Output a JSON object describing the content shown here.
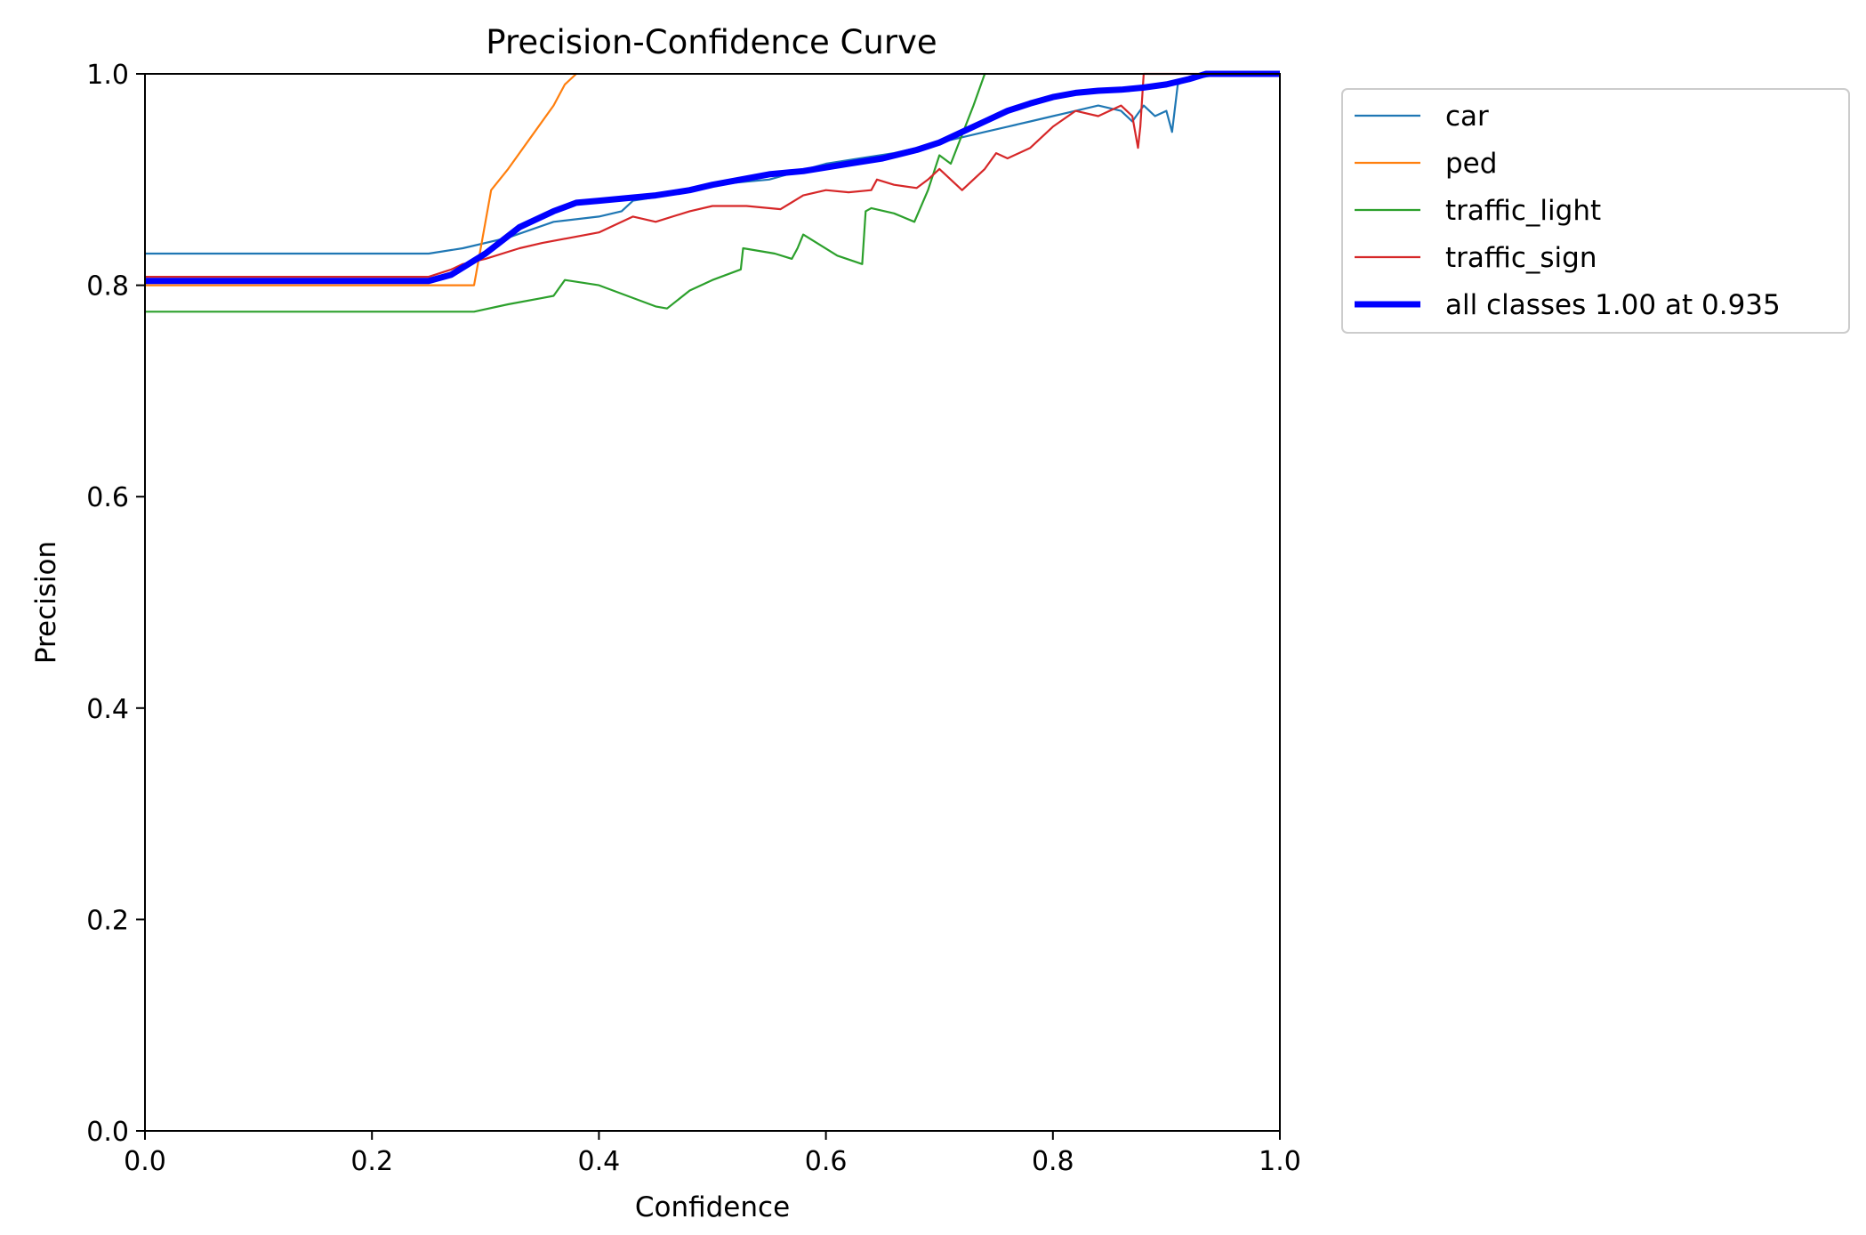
{
  "chart_data": {
    "type": "line",
    "title": "Precision-Confidence Curve",
    "xlabel": "Confidence",
    "ylabel": "Precision",
    "xlim": [
      0,
      1
    ],
    "ylim": [
      0,
      1
    ],
    "xticks": [
      "0.0",
      "0.2",
      "0.4",
      "0.6",
      "0.8",
      "1.0"
    ],
    "yticks": [
      "0.0",
      "0.2",
      "0.4",
      "0.6",
      "0.8",
      "1.0"
    ],
    "grid": false,
    "legend_position": "outside-right",
    "series": [
      {
        "name": "car",
        "color": "#1f77b4",
        "width": "thin",
        "x": [
          0.0,
          0.25,
          0.28,
          0.32,
          0.36,
          0.4,
          0.42,
          0.43,
          0.46,
          0.5,
          0.55,
          0.6,
          0.63,
          0.66,
          0.7,
          0.72,
          0.74,
          0.76,
          0.78,
          0.8,
          0.82,
          0.84,
          0.86,
          0.87,
          0.88,
          0.89,
          0.9,
          0.905,
          0.91,
          0.92,
          0.95,
          1.0
        ],
        "y": [
          0.83,
          0.83,
          0.835,
          0.845,
          0.86,
          0.865,
          0.87,
          0.88,
          0.885,
          0.895,
          0.9,
          0.915,
          0.92,
          0.925,
          0.935,
          0.94,
          0.945,
          0.95,
          0.955,
          0.96,
          0.965,
          0.97,
          0.965,
          0.955,
          0.97,
          0.96,
          0.965,
          0.945,
          0.99,
          0.995,
          1.0,
          1.0
        ]
      },
      {
        "name": "ped",
        "color": "#ff7f0e",
        "width": "thin",
        "x": [
          0.0,
          0.29,
          0.305,
          0.32,
          0.34,
          0.36,
          0.37,
          0.38
        ],
        "y": [
          0.8,
          0.8,
          0.89,
          0.91,
          0.94,
          0.97,
          0.99,
          1.0
        ]
      },
      {
        "name": "traffic_light",
        "color": "#2ca02c",
        "width": "thin",
        "x": [
          0.0,
          0.29,
          0.32,
          0.35,
          0.36,
          0.37,
          0.4,
          0.42,
          0.45,
          0.46,
          0.48,
          0.5,
          0.525,
          0.527,
          0.555,
          0.57,
          0.575,
          0.58,
          0.61,
          0.632,
          0.635,
          0.64,
          0.66,
          0.678,
          0.69,
          0.7,
          0.71,
          0.73,
          0.74
        ],
        "y": [
          0.775,
          0.775,
          0.782,
          0.788,
          0.79,
          0.805,
          0.8,
          0.792,
          0.78,
          0.778,
          0.795,
          0.805,
          0.815,
          0.835,
          0.83,
          0.825,
          0.835,
          0.848,
          0.828,
          0.82,
          0.87,
          0.873,
          0.868,
          0.86,
          0.89,
          0.923,
          0.915,
          0.97,
          1.0
        ]
      },
      {
        "name": "traffic_sign",
        "color": "#d62728",
        "width": "thin",
        "x": [
          0.0,
          0.25,
          0.27,
          0.28,
          0.3,
          0.33,
          0.35,
          0.4,
          0.43,
          0.45,
          0.48,
          0.5,
          0.53,
          0.56,
          0.58,
          0.6,
          0.62,
          0.64,
          0.645,
          0.66,
          0.68,
          0.69,
          0.7,
          0.72,
          0.74,
          0.75,
          0.76,
          0.78,
          0.8,
          0.82,
          0.84,
          0.86,
          0.87,
          0.875,
          0.877,
          0.88,
          1.0
        ],
        "y": [
          0.808,
          0.808,
          0.815,
          0.82,
          0.825,
          0.835,
          0.84,
          0.85,
          0.865,
          0.86,
          0.87,
          0.875,
          0.875,
          0.872,
          0.885,
          0.89,
          0.888,
          0.89,
          0.9,
          0.895,
          0.892,
          0.9,
          0.91,
          0.89,
          0.91,
          0.925,
          0.92,
          0.93,
          0.95,
          0.965,
          0.96,
          0.97,
          0.96,
          0.93,
          0.95,
          1.0,
          1.0
        ]
      },
      {
        "name": "all classes 1.00 at 0.935",
        "color": "#0000ff",
        "width": "thick",
        "x": [
          0.0,
          0.25,
          0.27,
          0.3,
          0.33,
          0.36,
          0.38,
          0.4,
          0.45,
          0.48,
          0.5,
          0.55,
          0.58,
          0.62,
          0.65,
          0.68,
          0.7,
          0.72,
          0.74,
          0.76,
          0.78,
          0.8,
          0.82,
          0.84,
          0.86,
          0.88,
          0.9,
          0.92,
          0.935,
          1.0
        ],
        "y": [
          0.804,
          0.804,
          0.81,
          0.83,
          0.855,
          0.87,
          0.878,
          0.88,
          0.885,
          0.89,
          0.895,
          0.905,
          0.908,
          0.915,
          0.92,
          0.928,
          0.935,
          0.945,
          0.955,
          0.965,
          0.972,
          0.978,
          0.982,
          0.984,
          0.985,
          0.987,
          0.99,
          0.995,
          1.0,
          1.0
        ]
      }
    ]
  }
}
